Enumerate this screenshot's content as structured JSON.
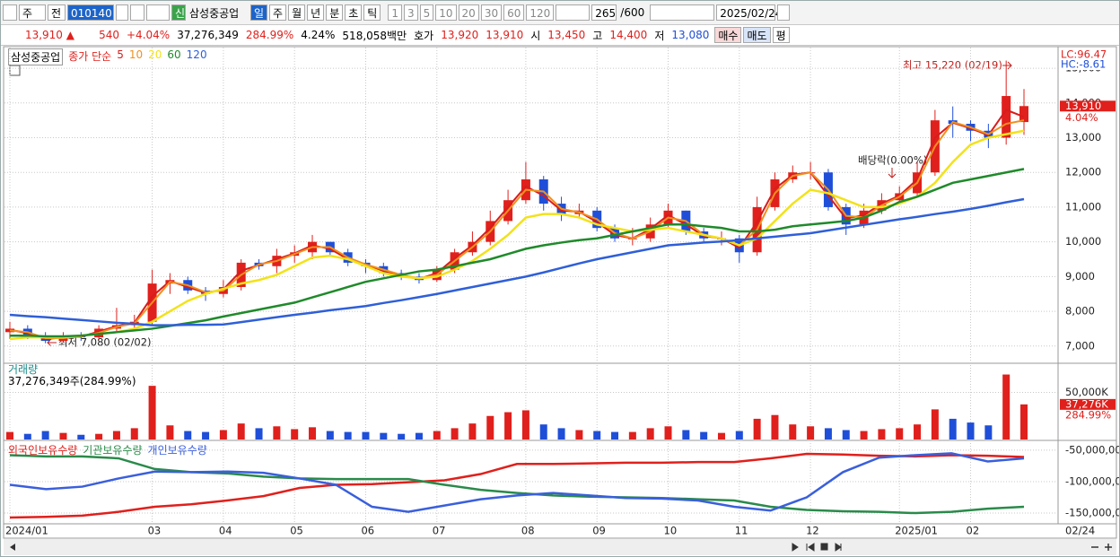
{
  "toolbar": {
    "period": "주",
    "scope": "전",
    "code": "010140",
    "credit": "신",
    "name": "삼성중공업",
    "intervals": [
      "일",
      "주",
      "월",
      "년",
      "분",
      "초",
      "틱"
    ],
    "minutes": [
      "1",
      "3",
      "5",
      "10",
      "20",
      "30",
      "60",
      "120"
    ],
    "count": "265",
    "max": "/600",
    "date": "2025/02/24"
  },
  "quote": {
    "price": "13,910",
    "change_sign": "▲",
    "change": "540",
    "change_pct": "+4.04%",
    "volume": "37,276,349",
    "volume_ratio": "284.99%",
    "turnover": "4.24%",
    "amount": "518,058백만",
    "ask_label": "호가",
    "ask": "13,920",
    "bid": "13,910",
    "open_label": "시",
    "open": "13,450",
    "high_label": "고",
    "high": "14,400",
    "low_label": "저",
    "low": "13,080",
    "buy": "매수",
    "sell": "매도",
    "avg": "평"
  },
  "chart_data": [
    {
      "type": "candlestick",
      "name": "삼성중공업",
      "indicator": "종가 단순",
      "categories": [
        "2024/01",
        null,
        null,
        null,
        null,
        null,
        null,
        null,
        "03",
        null,
        null,
        null,
        "04",
        null,
        null,
        null,
        "05",
        null,
        null,
        null,
        "06",
        null,
        null,
        null,
        "07",
        null,
        null,
        null,
        null,
        "08",
        null,
        null,
        null,
        "09",
        null,
        null,
        null,
        "10",
        null,
        null,
        null,
        "11",
        null,
        null,
        null,
        "12",
        null,
        null,
        null,
        null,
        "2025/01",
        null,
        null,
        null,
        "02",
        null,
        null,
        null
      ],
      "open": [
        7400,
        7500,
        7300,
        7150,
        7300,
        7250,
        7500,
        7600,
        7700,
        8800,
        8900,
        8600,
        8500,
        8700,
        9400,
        9300,
        9600,
        9700,
        10000,
        9700,
        9400,
        9300,
        9100,
        9000,
        8900,
        9200,
        9700,
        10000,
        10600,
        11200,
        11800,
        11100,
        10800,
        10900,
        10400,
        10100,
        10100,
        10500,
        10900,
        10300,
        10100,
        10100,
        9700,
        11000,
        11800,
        12000,
        12000,
        11000,
        10500,
        10900,
        11200,
        11400,
        12000,
        13500,
        13400,
        13200,
        13000,
        13450
      ],
      "high": [
        7700,
        7600,
        7400,
        7400,
        7400,
        7600,
        8100,
        7900,
        9200,
        9100,
        9000,
        8700,
        8900,
        9500,
        9500,
        9800,
        9900,
        10200,
        10000,
        9800,
        9500,
        9400,
        9200,
        9100,
        9300,
        9800,
        10300,
        10900,
        11500,
        12300,
        11900,
        11300,
        11100,
        11000,
        10500,
        10400,
        10700,
        11100,
        10900,
        10400,
        10300,
        10200,
        11300,
        12000,
        12200,
        12300,
        12100,
        11100,
        11100,
        11400,
        11600,
        12300,
        13800,
        13900,
        13500,
        13400,
        15220,
        14400
      ],
      "low": [
        7200,
        7200,
        7080,
        7100,
        7150,
        7200,
        7400,
        7500,
        7600,
        8500,
        8500,
        8300,
        8400,
        8600,
        9200,
        9100,
        9400,
        9500,
        9600,
        9300,
        9100,
        9000,
        8900,
        8800,
        8850,
        9100,
        9600,
        9900,
        10500,
        11100,
        10900,
        10600,
        10700,
        10300,
        10000,
        9900,
        10000,
        10400,
        10200,
        10000,
        9900,
        9400,
        9600,
        10900,
        11700,
        11800,
        10900,
        10200,
        10400,
        10800,
        11100,
        11300,
        11900,
        13000,
        12900,
        12700,
        12800,
        13080
      ],
      "close": [
        7500,
        7300,
        7150,
        7300,
        7250,
        7500,
        7600,
        7700,
        8800,
        8900,
        8600,
        8500,
        8700,
        9400,
        9300,
        9600,
        9700,
        10000,
        9700,
        9400,
        9300,
        9100,
        9000,
        8900,
        9200,
        9700,
        10000,
        10600,
        11200,
        11800,
        11100,
        10800,
        10900,
        10400,
        10100,
        10100,
        10500,
        10900,
        10300,
        10100,
        10100,
        9700,
        11000,
        11800,
        12000,
        12000,
        11000,
        10500,
        10900,
        11200,
        11400,
        12000,
        13500,
        13400,
        13200,
        13000,
        14200,
        13910
      ],
      "up_color": "#e0201c",
      "down_color": "#1f4fd8",
      "series": [
        {
          "name": "5",
          "color": "#d81c1c",
          "values": [
            7470,
            7370,
            7200,
            7250,
            7270,
            7420,
            7570,
            7670,
            8430,
            8870,
            8700,
            8530,
            8630,
            9170,
            9330,
            9500,
            9670,
            9900,
            9800,
            9500,
            9330,
            9170,
            9030,
            8930,
            9100,
            9530,
            9900,
            10400,
            11000,
            11600,
            11330,
            10900,
            10870,
            10570,
            10200,
            10100,
            10370,
            10770,
            10500,
            10170,
            10100,
            9830,
            10570,
            11530,
            11930,
            12000,
            11330,
            10670,
            10770,
            11100,
            11330,
            11800,
            13000,
            13430,
            13270,
            13070,
            13800,
            13600
          ]
        },
        {
          "name": "10",
          "color": "#f0901e",
          "values": [
            7450,
            7400,
            7230,
            7230,
            7280,
            7380,
            7550,
            7650,
            8250,
            8850,
            8750,
            8550,
            8600,
            9050,
            9350,
            9450,
            9650,
            9850,
            9850,
            9550,
            9350,
            9200,
            9050,
            8950,
            9050,
            9450,
            9850,
            10300,
            10900,
            11500,
            11450,
            10950,
            10850,
            10650,
            10250,
            10100,
            10300,
            10700,
            10600,
            10200,
            10100,
            9900,
            10350,
            11400,
            11900,
            12000,
            11500,
            10750,
            10700,
            11050,
            11300,
            11700,
            12750,
            13450,
            13300,
            13100,
            13400,
            13500
          ]
        },
        {
          "name": "20",
          "color": "#f2e21a",
          "values": [
            7200,
            7250,
            7250,
            7250,
            7300,
            7350,
            7400,
            7500,
            7700,
            8000,
            8300,
            8500,
            8650,
            8800,
            8900,
            9050,
            9300,
            9550,
            9600,
            9500,
            9300,
            9100,
            9000,
            8950,
            9000,
            9200,
            9450,
            9800,
            10200,
            10700,
            10800,
            10800,
            10700,
            10500,
            10400,
            10300,
            10350,
            10400,
            10300,
            10200,
            10100,
            9900,
            10100,
            10600,
            11100,
            11500,
            11400,
            11200,
            11000,
            11000,
            11100,
            11300,
            11700,
            12300,
            12800,
            13000,
            13100,
            13200
          ]
        },
        {
          "name": "60",
          "color": "#1f8a2a",
          "values": [
            7300,
            7300,
            7280,
            7280,
            7300,
            7350,
            7400,
            7450,
            7500,
            7580,
            7660,
            7740,
            7850,
            7950,
            8050,
            8150,
            8250,
            8400,
            8550,
            8700,
            8850,
            8950,
            9050,
            9150,
            9200,
            9300,
            9400,
            9500,
            9650,
            9800,
            9900,
            9980,
            10050,
            10100,
            10200,
            10300,
            10400,
            10500,
            10500,
            10450,
            10400,
            10300,
            10300,
            10350,
            10450,
            10500,
            10550,
            10600,
            10700,
            10900,
            11150,
            11300,
            11500,
            11700,
            11800,
            11900,
            12000,
            12100
          ]
        },
        {
          "name": "120",
          "color": "#2f5fd8",
          "values": [
            7900,
            7860,
            7830,
            7790,
            7750,
            7710,
            7670,
            7640,
            7600,
            7600,
            7610,
            7610,
            7620,
            7690,
            7760,
            7830,
            7900,
            7960,
            8030,
            8090,
            8150,
            8240,
            8320,
            8410,
            8500,
            8600,
            8700,
            8800,
            8900,
            9000,
            9120,
            9250,
            9380,
            9500,
            9600,
            9700,
            9800,
            9900,
            9940,
            9980,
            10010,
            10050,
            10100,
            10150,
            10200,
            10250,
            10330,
            10410,
            10490,
            10570,
            10650,
            10720,
            10800,
            10870,
            10950,
            11040,
            11140,
            11230
          ]
        }
      ],
      "ylim": [
        6530,
        15570
      ],
      "yticks": [
        {
          "value": 7000,
          "label": "7,000"
        },
        {
          "value": 8000,
          "label": "8,000"
        },
        {
          "value": 9000,
          "label": "9,000"
        },
        {
          "value": 10000,
          "label": "10,000"
        },
        {
          "value": 11000,
          "label": "11,000"
        },
        {
          "value": 12000,
          "label": "12,000"
        },
        {
          "value": 13000,
          "label": "13,000"
        },
        {
          "value": 14000,
          "label": "14,000"
        },
        {
          "value": 15000,
          "label": "15,000"
        }
      ],
      "grid": true,
      "annotations": [
        "최고 15,220 (02/19)",
        "최저 7,080 (02/02)",
        "배당락(0.00%)"
      ],
      "last": {
        "value": 13910,
        "label": "13,910"
      },
      "last_change": "4.04%",
      "lc": "LC:96.47",
      "hc": "HC:-8.61",
      "last_date": "02/24"
    },
    {
      "type": "bar",
      "title": "거래량",
      "subtitle": "37,276,349주(284.99%)",
      "values": [
        8000,
        6000,
        9000,
        7000,
        5000,
        6000,
        9000,
        12000,
        57000,
        15000,
        9000,
        8000,
        10000,
        17000,
        12000,
        14000,
        11000,
        13000,
        9000,
        8000,
        8000,
        7000,
        6000,
        7000,
        9000,
        12000,
        17000,
        25000,
        29000,
        31000,
        16000,
        12000,
        10000,
        9000,
        8000,
        8000,
        12000,
        14000,
        10000,
        8000,
        7000,
        9000,
        22000,
        26000,
        16000,
        14000,
        12000,
        10000,
        9000,
        11000,
        12000,
        16000,
        32000,
        22000,
        18000,
        15000,
        69000,
        37276
      ],
      "ylim": [
        0,
        80000
      ],
      "yticks": [
        {
          "value": 50000,
          "label": "50,000K"
        }
      ],
      "last": {
        "value": 37276,
        "label": "37,276K"
      },
      "last_ratio": "284.99%"
    },
    {
      "type": "line",
      "series": [
        {
          "name": "외국인보유수량",
          "color": "#e0201c",
          "values": [
            -157000000,
            -156000000,
            -154000000,
            -148000000,
            -140000000,
            -136000000,
            -130000000,
            -123000000,
            -110000000,
            -105000000,
            -104000000,
            -101000000,
            -98000000,
            -88000000,
            -72000000,
            -72000000,
            -71000000,
            -70000000,
            -70000000,
            -69000000,
            -69000000,
            -63000000,
            -56000000,
            -57000000,
            -59000000,
            -60000000,
            -58000000,
            -59000000,
            -61000000
          ]
        },
        {
          "name": "기관보유수량",
          "color": "#2a8a4a",
          "values": [
            -58000000,
            -60000000,
            -60000000,
            -63000000,
            -80000000,
            -85000000,
            -87000000,
            -92000000,
            -95000000,
            -96000000,
            -96000000,
            -96000000,
            -105000000,
            -113000000,
            -118000000,
            -122000000,
            -124000000,
            -125000000,
            -126000000,
            -128000000,
            -130000000,
            -140000000,
            -145000000,
            -147000000,
            -148000000,
            -150000000,
            -148000000,
            -143000000,
            -140000000
          ]
        },
        {
          "name": "개인보유수량",
          "color": "#3a5fdc",
          "values": [
            -105000000,
            -112000000,
            -108000000,
            -95000000,
            -84000000,
            -85000000,
            -84000000,
            -86000000,
            -95000000,
            -105000000,
            -140000000,
            -148000000,
            -138000000,
            -128000000,
            -122000000,
            -118000000,
            -122000000,
            -126000000,
            -127000000,
            -130000000,
            -140000000,
            -146000000,
            -125000000,
            -85000000,
            -62000000,
            -58000000,
            -55000000,
            -68000000,
            -63000000
          ]
        }
      ],
      "ylim": [
        -167000000,
        -36000000
      ],
      "yticks": [
        {
          "value": -50000000,
          "label": "-50,000,00"
        },
        {
          "value": -100000000,
          "label": "-100,000,0"
        },
        {
          "value": -150000000,
          "label": "-150,000,0"
        }
      ]
    }
  ]
}
